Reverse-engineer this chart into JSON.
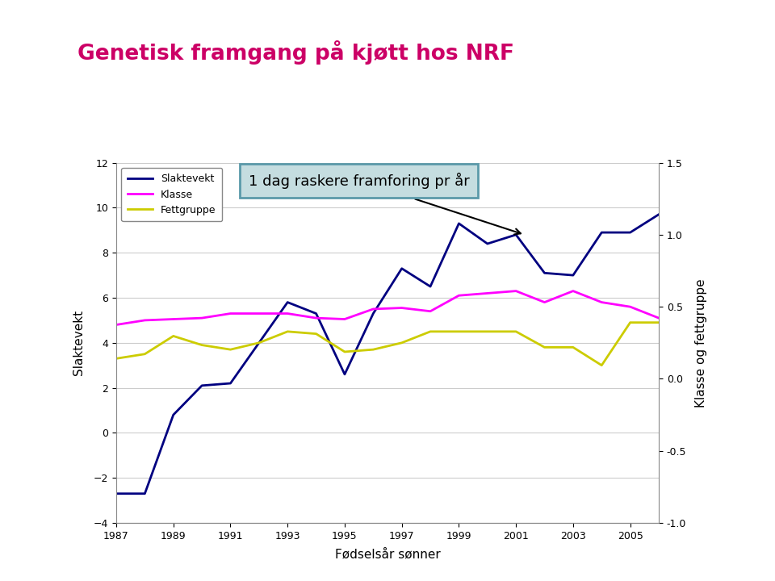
{
  "title": "Genetisk framgang på kjøtt hos NRF",
  "title_color": "#cc0066",
  "background_color": "#ffffff",
  "sidebar_color": "#cccc00",
  "xlabel": "Fødselsår sønner",
  "ylabel_left": "Slaktevekt",
  "ylabel_right": "Klasse og fettgruppe",
  "years": [
    1987,
    1988,
    1989,
    1990,
    1991,
    1992,
    1993,
    1994,
    1995,
    1996,
    1997,
    1998,
    1999,
    2000,
    2001,
    2002,
    2003,
    2004,
    2005,
    2006
  ],
  "slaktevekt": [
    -2.7,
    -2.7,
    0.8,
    2.1,
    2.2,
    4.0,
    5.8,
    5.3,
    2.6,
    5.3,
    7.3,
    6.5,
    9.3,
    8.4,
    8.8,
    7.1,
    7.0,
    8.9,
    8.9,
    9.7
  ],
  "klasse": [
    4.8,
    5.0,
    5.05,
    5.1,
    5.3,
    5.3,
    5.3,
    5.1,
    5.05,
    5.5,
    5.55,
    5.4,
    6.1,
    6.2,
    6.3,
    5.8,
    6.3,
    5.8,
    5.6,
    5.1
  ],
  "fettgruppe": [
    3.3,
    3.5,
    4.3,
    3.9,
    3.7,
    4.0,
    4.5,
    4.4,
    3.6,
    3.7,
    4.0,
    4.5,
    4.5,
    4.5,
    4.5,
    3.8,
    3.8,
    3.0,
    4.9,
    4.9
  ],
  "slaktevekt_color": "#000080",
  "klasse_color": "#ff00ff",
  "fettgruppe_color": "#cccc00",
  "fettgruppe_line_color": "#cccc00",
  "ylim_left": [
    -4,
    12
  ],
  "ylim_right": [
    -1.0,
    1.5
  ],
  "yticks_left": [
    -4,
    -2,
    0,
    2,
    4,
    6,
    8,
    10,
    12
  ],
  "yticks_right": [
    -1.0,
    -0.5,
    0.0,
    0.5,
    1.0,
    1.5
  ],
  "annotation_text": "1 dag raskere framforing pr år",
  "legend_slaktevekt": "Slaktevekt",
  "legend_klasse": "Klasse",
  "legend_fettgruppe": "Fettgruppe",
  "annot_box_color": "#c5dde0",
  "annot_box_edge": "#5b9aaa"
}
